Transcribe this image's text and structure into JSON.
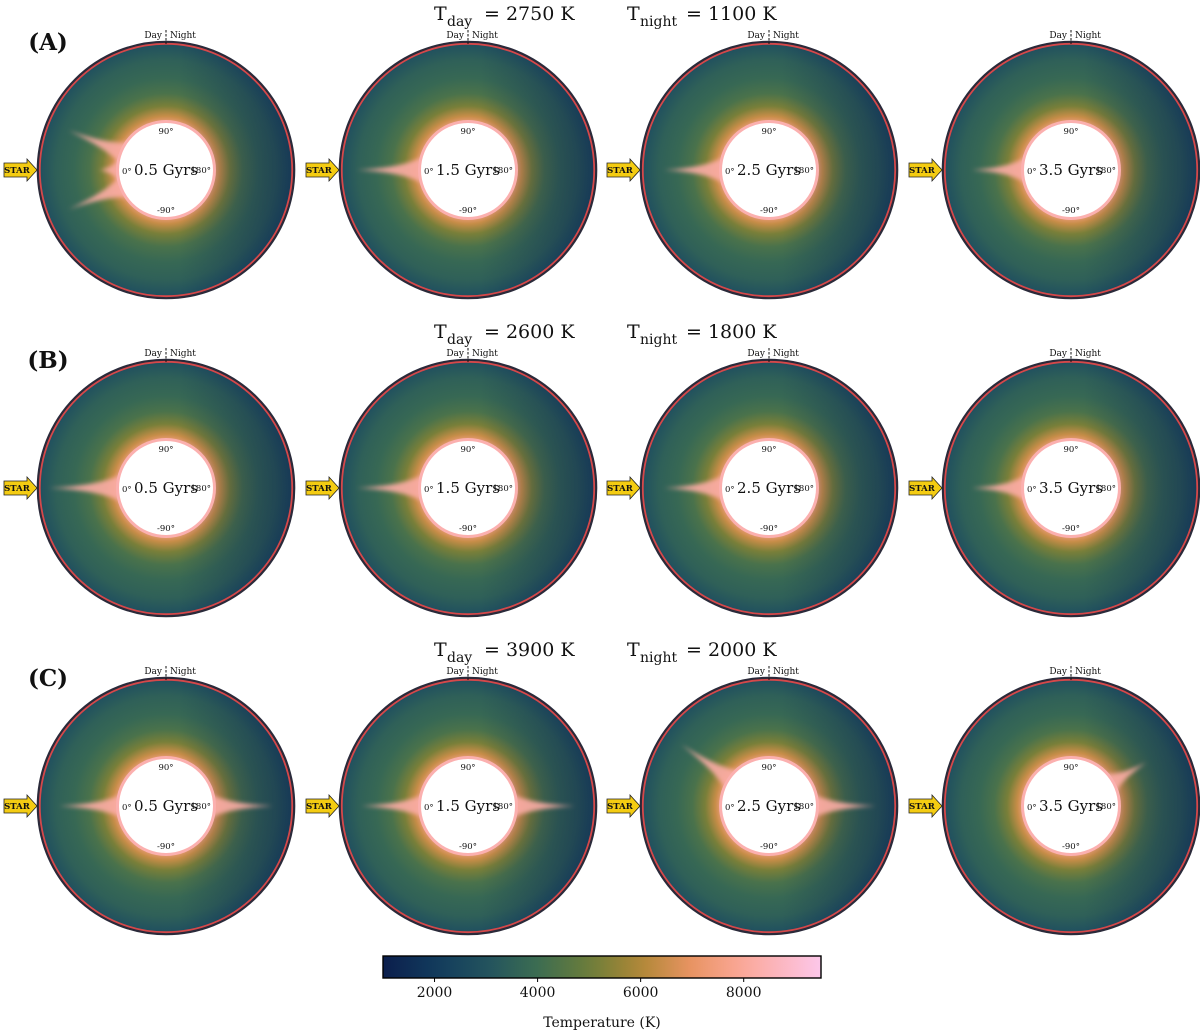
{
  "chart_data": {
    "type": "heatmap",
    "description_kind": "polar temperature maps of the planetary mantle vs. time",
    "colormap": {
      "name": "batlow-like",
      "title": "Temperature (K)",
      "range": [
        1000,
        9500
      ],
      "ticks": [
        2000,
        4000,
        6000,
        8000
      ],
      "stops": [
        {
          "t": 1000,
          "color": "#0b1e4c"
        },
        {
          "t": 2000,
          "color": "#113a5c"
        },
        {
          "t": 3000,
          "color": "#22525e"
        },
        {
          "t": 4000,
          "color": "#3c6d52"
        },
        {
          "t": 5000,
          "color": "#6b7d3a"
        },
        {
          "t": 6000,
          "color": "#b08836"
        },
        {
          "t": 7000,
          "color": "#ea9463"
        },
        {
          "t": 8000,
          "color": "#fba89a"
        },
        {
          "t": 9500,
          "color": "#fcc7ea"
        }
      ]
    },
    "common_labels": {
      "day": "Day",
      "night": "Night",
      "star": "STAR",
      "angle_top": "90°",
      "angle_bottom": "-90°",
      "angle_left": "0°",
      "angle_right": "180°"
    },
    "rows": [
      {
        "label": "(A)",
        "t_day_text": "= 2750 K",
        "t_night_text": "= 1100 K",
        "t_day": 2750,
        "t_night": 1100,
        "panels": [
          {
            "age_label": "0.5 Gyrs",
            "age": 0.5,
            "plume": "forked",
            "plume_angle": [
              0,
              0
            ]
          },
          {
            "age_label": "1.5 Gyrs",
            "age": 1.5,
            "plume": "single",
            "plume_angle": [
              0,
              0
            ]
          },
          {
            "age_label": "2.5 Gyrs",
            "age": 2.5,
            "plume": "single",
            "plume_angle": [
              0,
              0
            ]
          },
          {
            "age_label": "3.5 Gyrs",
            "age": 3.5,
            "plume": "single",
            "plume_angle": [
              0,
              0
            ]
          }
        ]
      },
      {
        "label": "(B)",
        "t_day_text": "= 2600 K",
        "t_night_text": "= 1800 K",
        "t_day": 2600,
        "t_night": 1800,
        "panels": [
          {
            "age_label": "0.5 Gyrs",
            "age": 0.5,
            "plume": "single",
            "plume_angle": [
              0,
              0
            ]
          },
          {
            "age_label": "1.5 Gyrs",
            "age": 1.5,
            "plume": "single",
            "plume_angle": [
              0,
              0
            ]
          },
          {
            "age_label": "2.5 Gyrs",
            "age": 2.5,
            "plume": "single",
            "plume_angle": [
              0,
              0
            ]
          },
          {
            "age_label": "3.5 Gyrs",
            "age": 3.5,
            "plume": "single",
            "plume_angle": [
              0,
              0
            ]
          }
        ]
      },
      {
        "label": "(C)",
        "t_day_text": "= 3900 K",
        "t_night_text": "= 2000 K",
        "t_day": 3900,
        "t_night": 2000,
        "panels": [
          {
            "age_label": "0.5 Gyrs",
            "age": 0.5,
            "plume": "double",
            "plume_angle": [
              0,
              180
            ]
          },
          {
            "age_label": "1.5 Gyrs",
            "age": 1.5,
            "plume": "double",
            "plume_angle": [
              0,
              180
            ]
          },
          {
            "age_label": "2.5 Gyrs",
            "age": 2.5,
            "plume": "double",
            "plume_angle": [
              35,
              180
            ]
          },
          {
            "age_label": "3.5 Gyrs",
            "age": 3.5,
            "plume": "single-night",
            "plume_angle": [
              150,
              150
            ]
          }
        ]
      }
    ]
  }
}
